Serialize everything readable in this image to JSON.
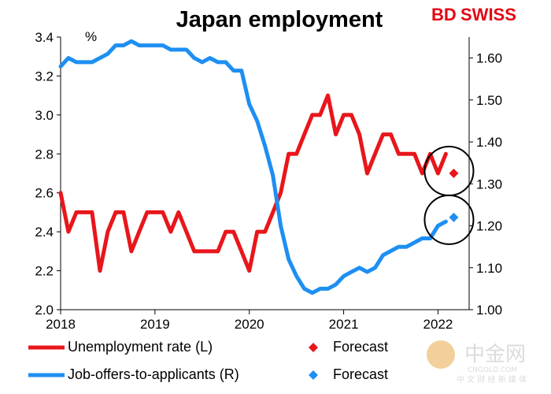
{
  "brand": {
    "bd": "BD",
    "swiss": "SWISS"
  },
  "watermark": {
    "main": "中金网",
    "url": "CNGOLD.COM",
    "sub": "中 文 财 经 新 媒 体"
  },
  "colors": {
    "unemployment": "#e8161b",
    "jobs": "#1e8ff2",
    "axis": "#000000",
    "brand_red": "#e30613"
  },
  "chart_data": {
    "type": "line",
    "title": "Japan employment",
    "unit_label": "%",
    "x_range": [
      2018.0,
      2022.33
    ],
    "x_ticks": [
      2018,
      2019,
      2020,
      2021,
      2022
    ],
    "x_tick_labels": [
      "2018",
      "2019",
      "2020",
      "2021",
      "2022"
    ],
    "y_left": {
      "range": [
        2.0,
        3.4
      ],
      "ticks": [
        "2.0",
        "2.2",
        "2.4",
        "2.6",
        "2.8",
        "3.0",
        "3.2",
        "3.4"
      ]
    },
    "y_right": {
      "range": [
        1.0,
        1.65
      ],
      "ticks": [
        "1.00",
        "1.10",
        "1.20",
        "1.30",
        "1.40",
        "1.50",
        "1.60"
      ]
    },
    "series": [
      {
        "name": "Unemployment rate (L)",
        "axis": "left",
        "x": [
          2018.0,
          2018.083,
          2018.167,
          2018.25,
          2018.333,
          2018.417,
          2018.5,
          2018.583,
          2018.667,
          2018.75,
          2018.833,
          2018.917,
          2019.0,
          2019.083,
          2019.167,
          2019.25,
          2019.333,
          2019.417,
          2019.5,
          2019.583,
          2019.667,
          2019.75,
          2019.833,
          2019.917,
          2020.0,
          2020.083,
          2020.167,
          2020.25,
          2020.333,
          2020.417,
          2020.5,
          2020.583,
          2020.667,
          2020.75,
          2020.833,
          2020.917,
          2021.0,
          2021.083,
          2021.167,
          2021.25,
          2021.333,
          2021.417,
          2021.5,
          2021.583,
          2021.667,
          2021.75,
          2021.833,
          2021.917,
          2022.0,
          2022.083
        ],
        "values": [
          2.6,
          2.4,
          2.5,
          2.5,
          2.5,
          2.2,
          2.4,
          2.5,
          2.5,
          2.3,
          2.4,
          2.5,
          2.5,
          2.5,
          2.4,
          2.5,
          2.4,
          2.3,
          2.3,
          2.3,
          2.3,
          2.4,
          2.4,
          2.3,
          2.2,
          2.4,
          2.4,
          2.5,
          2.6,
          2.8,
          2.8,
          2.9,
          3.0,
          3.0,
          3.1,
          2.9,
          3.0,
          3.0,
          2.9,
          2.7,
          2.8,
          2.9,
          2.9,
          2.8,
          2.8,
          2.8,
          2.7,
          2.8,
          2.7,
          2.8
        ]
      },
      {
        "name": "Job-offers-to-applicants (R)",
        "axis": "right",
        "x": [
          2018.0,
          2018.083,
          2018.167,
          2018.25,
          2018.333,
          2018.417,
          2018.5,
          2018.583,
          2018.667,
          2018.75,
          2018.833,
          2018.917,
          2019.0,
          2019.083,
          2019.167,
          2019.25,
          2019.333,
          2019.417,
          2019.5,
          2019.583,
          2019.667,
          2019.75,
          2019.833,
          2019.917,
          2020.0,
          2020.083,
          2020.167,
          2020.25,
          2020.333,
          2020.417,
          2020.5,
          2020.583,
          2020.667,
          2020.75,
          2020.833,
          2020.917,
          2021.0,
          2021.083,
          2021.167,
          2021.25,
          2021.333,
          2021.417,
          2021.5,
          2021.583,
          2021.667,
          2021.75,
          2021.833,
          2021.917,
          2022.0,
          2022.083
        ],
        "values": [
          1.58,
          1.6,
          1.59,
          1.59,
          1.59,
          1.6,
          1.61,
          1.63,
          1.63,
          1.64,
          1.63,
          1.63,
          1.63,
          1.63,
          1.62,
          1.62,
          1.62,
          1.6,
          1.59,
          1.6,
          1.59,
          1.59,
          1.57,
          1.57,
          1.49,
          1.45,
          1.39,
          1.32,
          1.2,
          1.12,
          1.08,
          1.05,
          1.04,
          1.05,
          1.05,
          1.06,
          1.08,
          1.09,
          1.1,
          1.09,
          1.1,
          1.13,
          1.14,
          1.15,
          1.15,
          1.16,
          1.17,
          1.17,
          1.2,
          1.21
        ]
      }
    ],
    "forecasts": [
      {
        "name": "Forecast",
        "axis": "left",
        "x": 2022.167,
        "value": 2.7
      },
      {
        "name": "Forecast",
        "axis": "right",
        "x": 2022.167,
        "value": 1.22
      }
    ],
    "annotations": [
      "circle around unemployment forecast",
      "circle around job-offers forecast"
    ],
    "legend": [
      {
        "label": "Unemployment rate (L)",
        "kind": "line",
        "series": "unemployment"
      },
      {
        "label": "Forecast",
        "kind": "diamond",
        "series": "unemployment"
      },
      {
        "label": "Job-offers-to-applicants (R)",
        "kind": "line",
        "series": "jobs"
      },
      {
        "label": "Forecast",
        "kind": "diamond",
        "series": "jobs"
      }
    ],
    "grid": false
  }
}
